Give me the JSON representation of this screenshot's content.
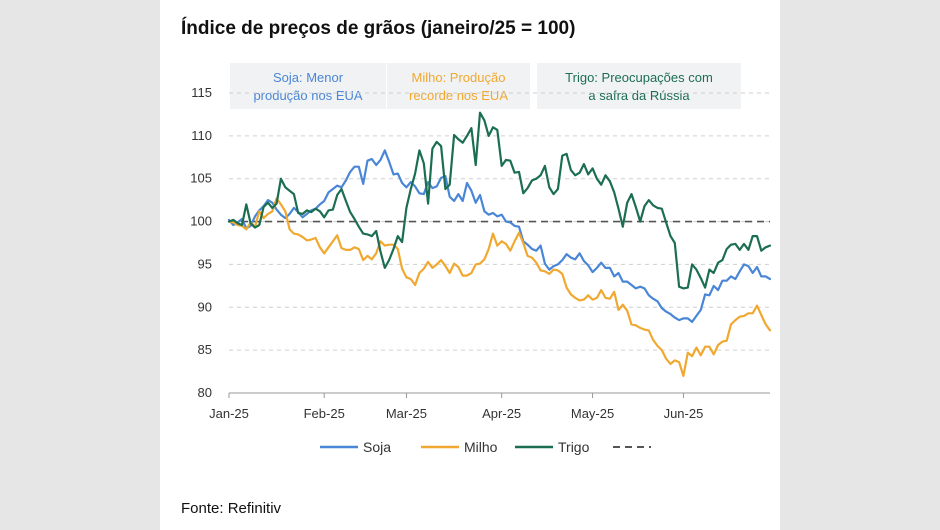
{
  "title": "Índice de preços de grãos (janeiro/25 = 100)",
  "source": "Fonte: Refinitiv",
  "chart_data": {
    "type": "line",
    "ylim": [
      80,
      115
    ],
    "yticks": [
      80,
      85,
      90,
      95,
      100,
      105,
      110,
      115
    ],
    "xlabels": [
      "Jan-25",
      "Feb-25",
      "Mar-25",
      "Apr-25",
      "May-25",
      "Jun-25"
    ],
    "xlim": [
      0,
      125
    ],
    "xtick_positions": [
      0,
      22,
      41,
      63,
      84,
      105
    ],
    "grid": true,
    "reference_line": 100,
    "legend_position": "bottom",
    "series": [
      {
        "name": "Soja",
        "color": "#4a86d6",
        "values": [
          100.2,
          99.6,
          99.9,
          100.3,
          99.2,
          99.5,
          100.6,
          101.3,
          101.8,
          102.5,
          102.2,
          101.4,
          100.8,
          100.4,
          100.9,
          101.6,
          101.1,
          100.5,
          100.9,
          101.3,
          101.5,
          102.0,
          102.4,
          103.4,
          103.8,
          104.2,
          104.0,
          104.8,
          105.8,
          106.4,
          106.4,
          104.4,
          107.1,
          107.3,
          106.6,
          107.2,
          108.3,
          107.0,
          105.5,
          105.6,
          104.5,
          104.0,
          104.6,
          104.1,
          103.3,
          103.2,
          104.6,
          103.9,
          104.1,
          105.1,
          105.3,
          102.9,
          102.4,
          103.2,
          102.4,
          104.5,
          103.6,
          102.2,
          103.1,
          101.2,
          100.8,
          101.0,
          100.6,
          100.8,
          100.0,
          99.9,
          99.5,
          99.4,
          97.7,
          97.3,
          96.8,
          96.6,
          97.2,
          95.1,
          94.4,
          94.8,
          95.0,
          95.5,
          96.2,
          95.8,
          95.6,
          96.3,
          95.4,
          94.9,
          94.1,
          94.6,
          95.2,
          94.6,
          94.6,
          93.6,
          94.0,
          93.0,
          93.0,
          92.6,
          92.2,
          92.4,
          92.2,
          91.4,
          91.0,
          90.7,
          89.9,
          89.5,
          89.2,
          88.8,
          88.5,
          88.7,
          88.7,
          88.3,
          89.0,
          89.7,
          91.5,
          91.4,
          92.5,
          92.0,
          93.1,
          93.1,
          93.6,
          93.3,
          94.2,
          95.0,
          94.8,
          94.0,
          94.7,
          93.6,
          93.6,
          93.3
        ]
      },
      {
        "name": "Milho",
        "color": "#f0a830",
        "values": [
          100.0,
          99.9,
          99.6,
          99.5,
          99.1,
          99.9,
          99.4,
          101.2,
          100.4,
          100.9,
          101.2,
          102.7,
          102.0,
          101.2,
          99.1,
          98.6,
          98.5,
          98.2,
          97.8,
          97.9,
          98.1,
          97.0,
          96.3,
          97.0,
          97.7,
          98.4,
          96.9,
          96.7,
          96.7,
          97.0,
          96.8,
          95.5,
          96.0,
          95.6,
          96.3,
          97.7,
          97.2,
          97.3,
          97.3,
          96.8,
          94.5,
          93.5,
          93.3,
          92.6,
          94.0,
          94.5,
          95.3,
          94.6,
          95.0,
          95.5,
          94.8,
          94.0,
          95.1,
          94.7,
          93.7,
          93.7,
          94.0,
          95.0,
          95.1,
          95.6,
          96.8,
          98.6,
          97.2,
          97.7,
          97.4,
          96.6,
          97.7,
          98.7,
          97.5,
          96.0,
          95.8,
          95.2,
          94.3,
          94.2,
          93.9,
          94.4,
          94.3,
          93.9,
          92.3,
          91.5,
          91.1,
          90.8,
          90.9,
          91.4,
          90.9,
          91.1,
          92.0,
          91.1,
          91.0,
          91.8,
          89.7,
          90.3,
          89.6,
          88.0,
          87.9,
          87.6,
          87.4,
          87.3,
          86.2,
          85.5,
          85.0,
          84.0,
          83.4,
          83.8,
          83.6,
          82.0,
          84.7,
          84.3,
          85.3,
          84.4,
          85.4,
          85.4,
          84.5,
          85.6,
          86.0,
          86.1,
          88.0,
          88.5,
          88.9,
          89.0,
          89.3,
          89.3,
          90.2,
          89.1,
          88.0,
          87.3
        ]
      },
      {
        "name": "Trigo",
        "color": "#1c6e52",
        "values": [
          100.0,
          100.2,
          99.8,
          99.6,
          102.0,
          99.8,
          99.3,
          99.6,
          101.7,
          102.2,
          101.6,
          102.1,
          105.0,
          104.0,
          103.6,
          103.2,
          101.0,
          100.9,
          101.3,
          101.1,
          101.5,
          101.2,
          100.5,
          101.3,
          101.4,
          103.1,
          103.8,
          102.4,
          101.1,
          100.3,
          99.4,
          98.6,
          98.5,
          98.3,
          98.9,
          96.5,
          94.6,
          95.5,
          96.8,
          98.3,
          97.6,
          101.6,
          103.8,
          105.6,
          108.3,
          106.8,
          102.1,
          108.5,
          109.3,
          108.8,
          103.8,
          104.3,
          110.1,
          109.6,
          109.2,
          110.0,
          110.9,
          106.6,
          112.7,
          111.8,
          110.0,
          111.0,
          110.7,
          106.5,
          107.2,
          107.1,
          105.7,
          105.8,
          103.3,
          103.9,
          104.8,
          105.0,
          105.4,
          106.5,
          104.0,
          103.2,
          103.8,
          107.7,
          107.9,
          106.0,
          105.4,
          105.7,
          106.7,
          105.5,
          106.2,
          105.0,
          104.3,
          105.4,
          104.7,
          103.4,
          101.5,
          99.4,
          102.2,
          103.2,
          101.7,
          100.0,
          101.8,
          102.5,
          101.9,
          101.6,
          101.5,
          99.9,
          98.3,
          97.5,
          92.4,
          92.2,
          92.3,
          95.0,
          94.4,
          93.4,
          92.3,
          94.4,
          94.0,
          95.2,
          95.5,
          96.8,
          97.3,
          97.4,
          96.7,
          97.4,
          96.7,
          98.3,
          98.3,
          96.6,
          97.0,
          97.2
        ]
      }
    ],
    "annotations": [
      {
        "lines": [
          "Soja: Menor",
          "produção nos EUA"
        ],
        "color": "#4a86d6"
      },
      {
        "lines": [
          "Milho: Produção",
          "recorde nos EUA"
        ],
        "color": "#f0a830"
      },
      {
        "lines": [
          "Trigo: Preocupações com",
          "a safra da Rússia"
        ],
        "color": "#1c6e52"
      }
    ]
  }
}
